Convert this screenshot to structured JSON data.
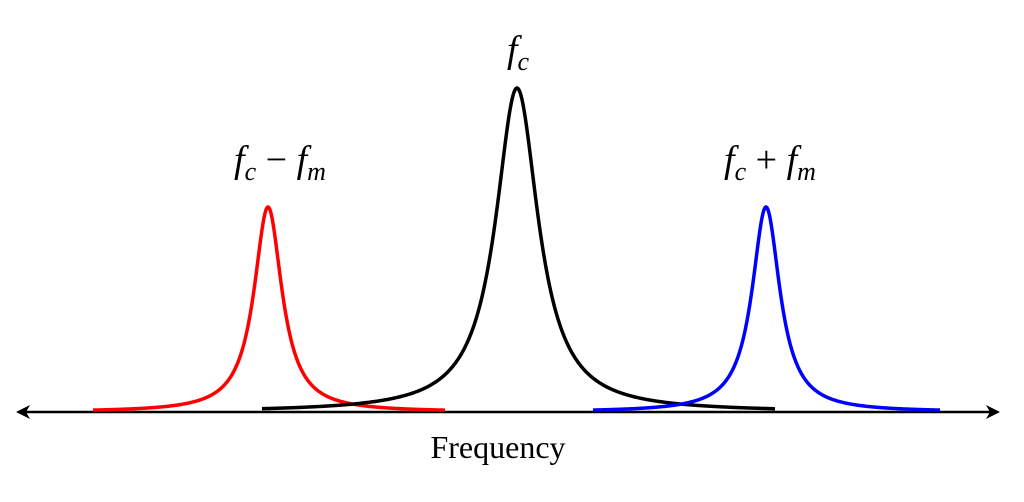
{
  "peaks": [
    {
      "label": [
        "f",
        "c",
        " − ",
        "f",
        "m"
      ]
    },
    {
      "label": [
        "f",
        "c"
      ]
    },
    {
      "label": [
        "f",
        "c",
        " + ",
        "f",
        "m"
      ]
    }
  ],
  "axis": {
    "label": "Frequency"
  }
}
